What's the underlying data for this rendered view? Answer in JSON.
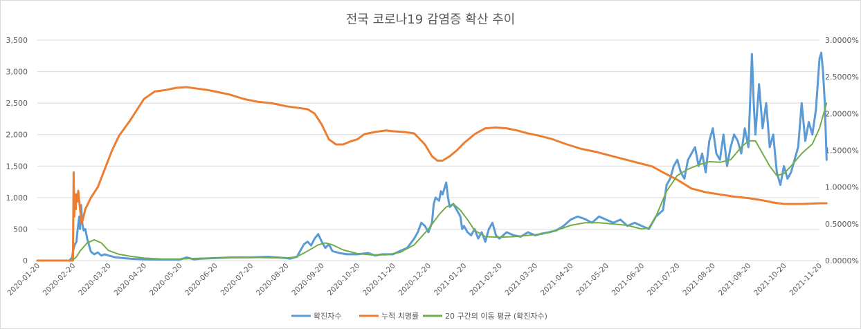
{
  "chart_data": {
    "type": "line",
    "title": "전국 코로나19 감염증 확산 추이",
    "x_categories": [
      "2020-01-20",
      "2020-02-20",
      "2020-03-20",
      "2020-04-20",
      "2020-05-20",
      "2020-06-20",
      "2020-07-20",
      "2020-08-20",
      "2020-09-20",
      "2020-10-20",
      "2020-11-20",
      "2020-12-20",
      "2021-01-20",
      "2021-02-20",
      "2021-03-20",
      "2021-04-20",
      "2021-05-20",
      "2021-06-20",
      "2021-07-20",
      "2021-08-20",
      "2021-09-20",
      "2021-10-20",
      "2021-11-20"
    ],
    "y_left": {
      "min": 0,
      "max": 3500,
      "ticks": [
        "0",
        "500",
        "1,000",
        "1,500",
        "2,000",
        "2,500",
        "3,000",
        "3,500"
      ]
    },
    "y_right": {
      "min": 0,
      "max": 3.0,
      "ticks": [
        "0.0000%",
        "0.5000%",
        "1.0000%",
        "1.5000%",
        "2.0000%",
        "2.5000%",
        "3.0000%"
      ]
    },
    "series": [
      {
        "name": "확진자수",
        "axis": "left",
        "color": "#5b9bd5",
        "points": [
          [
            0,
            0
          ],
          [
            0.9,
            0
          ],
          [
            0.98,
            50
          ],
          [
            1.0,
            150
          ],
          [
            1.05,
            250
          ],
          [
            1.1,
            300
          ],
          [
            1.13,
            480
          ],
          [
            1.18,
            700
          ],
          [
            1.2,
            500
          ],
          [
            1.23,
            880
          ],
          [
            1.26,
            600
          ],
          [
            1.3,
            480
          ],
          [
            1.35,
            500
          ],
          [
            1.4,
            350
          ],
          [
            1.45,
            250
          ],
          [
            1.5,
            150
          ],
          [
            1.55,
            120
          ],
          [
            1.6,
            100
          ],
          [
            1.7,
            130
          ],
          [
            1.8,
            80
          ],
          [
            1.9,
            100
          ],
          [
            2.0,
            80
          ],
          [
            2.2,
            50
          ],
          [
            2.4,
            40
          ],
          [
            2.6,
            30
          ],
          [
            3.0,
            20
          ],
          [
            3.5,
            15
          ],
          [
            4.0,
            15
          ],
          [
            4.2,
            50
          ],
          [
            4.4,
            20
          ],
          [
            4.6,
            30
          ],
          [
            5.0,
            40
          ],
          [
            5.5,
            50
          ],
          [
            6.0,
            50
          ],
          [
            6.5,
            60
          ],
          [
            7.0,
            40
          ],
          [
            7.1,
            30
          ],
          [
            7.3,
            60
          ],
          [
            7.5,
            260
          ],
          [
            7.6,
            300
          ],
          [
            7.7,
            240
          ],
          [
            7.8,
            350
          ],
          [
            7.9,
            420
          ],
          [
            8.0,
            300
          ],
          [
            8.1,
            200
          ],
          [
            8.2,
            260
          ],
          [
            8.3,
            150
          ],
          [
            8.5,
            120
          ],
          [
            8.7,
            100
          ],
          [
            9.0,
            100
          ],
          [
            9.3,
            120
          ],
          [
            9.5,
            80
          ],
          [
            9.7,
            100
          ],
          [
            10.0,
            100
          ],
          [
            10.2,
            150
          ],
          [
            10.4,
            200
          ],
          [
            10.6,
            350
          ],
          [
            10.7,
            450
          ],
          [
            10.8,
            600
          ],
          [
            10.9,
            550
          ],
          [
            11.0,
            450
          ],
          [
            11.1,
            600
          ],
          [
            11.15,
            900
          ],
          [
            11.2,
            1000
          ],
          [
            11.3,
            950
          ],
          [
            11.35,
            1100
          ],
          [
            11.4,
            1050
          ],
          [
            11.5,
            1240
          ],
          [
            11.55,
            1000
          ],
          [
            11.6,
            850
          ],
          [
            11.7,
            900
          ],
          [
            11.8,
            800
          ],
          [
            11.9,
            700
          ],
          [
            11.95,
            500
          ],
          [
            12.0,
            550
          ],
          [
            12.1,
            450
          ],
          [
            12.2,
            400
          ],
          [
            12.3,
            500
          ],
          [
            12.4,
            350
          ],
          [
            12.5,
            450
          ],
          [
            12.6,
            300
          ],
          [
            12.7,
            500
          ],
          [
            12.8,
            600
          ],
          [
            12.9,
            400
          ],
          [
            13.0,
            350
          ],
          [
            13.2,
            450
          ],
          [
            13.4,
            400
          ],
          [
            13.6,
            380
          ],
          [
            13.8,
            450
          ],
          [
            14.0,
            400
          ],
          [
            14.2,
            430
          ],
          [
            14.4,
            450
          ],
          [
            14.6,
            480
          ],
          [
            14.8,
            550
          ],
          [
            15.0,
            650
          ],
          [
            15.2,
            700
          ],
          [
            15.4,
            660
          ],
          [
            15.6,
            600
          ],
          [
            15.8,
            700
          ],
          [
            16.0,
            650
          ],
          [
            16.2,
            600
          ],
          [
            16.4,
            650
          ],
          [
            16.6,
            550
          ],
          [
            16.8,
            600
          ],
          [
            17.0,
            550
          ],
          [
            17.2,
            500
          ],
          [
            17.4,
            700
          ],
          [
            17.6,
            800
          ],
          [
            17.7,
            1200
          ],
          [
            17.8,
            1300
          ],
          [
            17.9,
            1500
          ],
          [
            18.0,
            1600
          ],
          [
            18.1,
            1400
          ],
          [
            18.2,
            1300
          ],
          [
            18.3,
            1600
          ],
          [
            18.4,
            1700
          ],
          [
            18.5,
            1800
          ],
          [
            18.6,
            1500
          ],
          [
            18.7,
            1700
          ],
          [
            18.8,
            1400
          ],
          [
            18.9,
            1900
          ],
          [
            19.0,
            2100
          ],
          [
            19.1,
            1700
          ],
          [
            19.2,
            1600
          ],
          [
            19.3,
            2000
          ],
          [
            19.4,
            1500
          ],
          [
            19.5,
            1800
          ],
          [
            19.6,
            2000
          ],
          [
            19.7,
            1900
          ],
          [
            19.8,
            1700
          ],
          [
            19.9,
            2100
          ],
          [
            20.0,
            1800
          ],
          [
            20.1,
            3280
          ],
          [
            20.15,
            2500
          ],
          [
            20.2,
            2000
          ],
          [
            20.3,
            2800
          ],
          [
            20.4,
            2100
          ],
          [
            20.5,
            2500
          ],
          [
            20.6,
            1800
          ],
          [
            20.7,
            2000
          ],
          [
            20.8,
            1400
          ],
          [
            20.9,
            1200
          ],
          [
            21.0,
            1500
          ],
          [
            21.1,
            1300
          ],
          [
            21.2,
            1400
          ],
          [
            21.3,
            1600
          ],
          [
            21.4,
            1800
          ],
          [
            21.5,
            2500
          ],
          [
            21.6,
            1900
          ],
          [
            21.7,
            2200
          ],
          [
            21.8,
            2000
          ],
          [
            21.9,
            2400
          ],
          [
            22.0,
            3200
          ],
          [
            22.05,
            3300
          ],
          [
            22.1,
            3000
          ],
          [
            22.15,
            2500
          ],
          [
            22.2,
            1600
          ]
        ]
      },
      {
        "name": "누적 치명률",
        "axis": "right",
        "color": "#ed7d31",
        "points": [
          [
            0,
            0
          ],
          [
            1.0,
            0
          ],
          [
            1.02,
            1.2
          ],
          [
            1.04,
            0.6
          ],
          [
            1.06,
            0.9
          ],
          [
            1.08,
            0.7
          ],
          [
            1.1,
            0.9
          ],
          [
            1.12,
            0.8
          ],
          [
            1.15,
            0.95
          ],
          [
            1.2,
            0.7
          ],
          [
            1.25,
            0.5
          ],
          [
            1.35,
            0.7
          ],
          [
            1.5,
            0.85
          ],
          [
            1.7,
            1.0
          ],
          [
            1.9,
            1.25
          ],
          [
            2.1,
            1.5
          ],
          [
            2.3,
            1.7
          ],
          [
            2.6,
            1.9
          ],
          [
            2.8,
            2.05
          ],
          [
            3.0,
            2.2
          ],
          [
            3.3,
            2.3
          ],
          [
            3.6,
            2.32
          ],
          [
            3.9,
            2.35
          ],
          [
            4.2,
            2.36
          ],
          [
            4.5,
            2.34
          ],
          [
            4.8,
            2.32
          ],
          [
            5.0,
            2.3
          ],
          [
            5.4,
            2.26
          ],
          [
            5.8,
            2.2
          ],
          [
            6.2,
            2.16
          ],
          [
            6.6,
            2.14
          ],
          [
            7.0,
            2.1
          ],
          [
            7.3,
            2.08
          ],
          [
            7.6,
            2.06
          ],
          [
            7.8,
            2.0
          ],
          [
            8.0,
            1.85
          ],
          [
            8.2,
            1.65
          ],
          [
            8.4,
            1.58
          ],
          [
            8.6,
            1.58
          ],
          [
            8.8,
            1.62
          ],
          [
            9.0,
            1.65
          ],
          [
            9.2,
            1.72
          ],
          [
            9.5,
            1.75
          ],
          [
            9.8,
            1.77
          ],
          [
            10.0,
            1.76
          ],
          [
            10.3,
            1.75
          ],
          [
            10.6,
            1.73
          ],
          [
            10.9,
            1.58
          ],
          [
            11.1,
            1.42
          ],
          [
            11.25,
            1.36
          ],
          [
            11.4,
            1.36
          ],
          [
            11.6,
            1.42
          ],
          [
            11.8,
            1.5
          ],
          [
            12.0,
            1.6
          ],
          [
            12.3,
            1.72
          ],
          [
            12.6,
            1.8
          ],
          [
            12.9,
            1.81
          ],
          [
            13.2,
            1.8
          ],
          [
            13.5,
            1.77
          ],
          [
            13.8,
            1.73
          ],
          [
            14.1,
            1.7
          ],
          [
            14.5,
            1.65
          ],
          [
            14.9,
            1.58
          ],
          [
            15.3,
            1.52
          ],
          [
            15.7,
            1.48
          ],
          [
            16.1,
            1.43
          ],
          [
            16.5,
            1.38
          ],
          [
            16.9,
            1.33
          ],
          [
            17.3,
            1.28
          ],
          [
            17.6,
            1.2
          ],
          [
            18.0,
            1.1
          ],
          [
            18.4,
            0.98
          ],
          [
            18.8,
            0.93
          ],
          [
            19.2,
            0.9
          ],
          [
            19.6,
            0.87
          ],
          [
            20.0,
            0.85
          ],
          [
            20.4,
            0.82
          ],
          [
            20.7,
            0.79
          ],
          [
            21.0,
            0.77
          ],
          [
            21.5,
            0.77
          ],
          [
            22.0,
            0.78
          ],
          [
            22.2,
            0.78
          ]
        ]
      },
      {
        "name": "20 구간의 이동 평균 (확진자수)",
        "axis": "left",
        "color": "#70ad47",
        "points": [
          [
            1.0,
            10
          ],
          [
            1.1,
            60
          ],
          [
            1.2,
            150
          ],
          [
            1.4,
            280
          ],
          [
            1.6,
            330
          ],
          [
            1.8,
            280
          ],
          [
            2.0,
            160
          ],
          [
            2.3,
            100
          ],
          [
            2.6,
            70
          ],
          [
            3.0,
            40
          ],
          [
            3.5,
            25
          ],
          [
            4.0,
            25
          ],
          [
            4.5,
            35
          ],
          [
            5.0,
            40
          ],
          [
            5.5,
            45
          ],
          [
            6.0,
            50
          ],
          [
            6.5,
            45
          ],
          [
            7.0,
            40
          ],
          [
            7.3,
            60
          ],
          [
            7.6,
            150
          ],
          [
            7.9,
            250
          ],
          [
            8.1,
            280
          ],
          [
            8.3,
            250
          ],
          [
            8.6,
            170
          ],
          [
            9.0,
            110
          ],
          [
            9.4,
            90
          ],
          [
            9.8,
            90
          ],
          [
            10.2,
            130
          ],
          [
            10.6,
            250
          ],
          [
            11.0,
            500
          ],
          [
            11.3,
            730
          ],
          [
            11.5,
            850
          ],
          [
            11.7,
            900
          ],
          [
            11.9,
            800
          ],
          [
            12.1,
            650
          ],
          [
            12.3,
            480
          ],
          [
            12.6,
            380
          ],
          [
            13.0,
            370
          ],
          [
            13.4,
            380
          ],
          [
            13.8,
            400
          ],
          [
            14.2,
            420
          ],
          [
            14.6,
            480
          ],
          [
            15.0,
            560
          ],
          [
            15.4,
            600
          ],
          [
            15.8,
            600
          ],
          [
            16.2,
            580
          ],
          [
            16.6,
            560
          ],
          [
            17.0,
            500
          ],
          [
            17.2,
            520
          ],
          [
            17.4,
            700
          ],
          [
            17.7,
            1100
          ],
          [
            18.0,
            1350
          ],
          [
            18.3,
            1450
          ],
          [
            18.6,
            1520
          ],
          [
            18.9,
            1570
          ],
          [
            19.2,
            1560
          ],
          [
            19.5,
            1600
          ],
          [
            19.8,
            1800
          ],
          [
            20.0,
            1900
          ],
          [
            20.2,
            1900
          ],
          [
            20.4,
            1700
          ],
          [
            20.6,
            1500
          ],
          [
            20.8,
            1350
          ],
          [
            21.0,
            1380
          ],
          [
            21.2,
            1500
          ],
          [
            21.5,
            1700
          ],
          [
            21.8,
            1850
          ],
          [
            22.0,
            2100
          ],
          [
            22.2,
            2500
          ]
        ]
      }
    ]
  }
}
